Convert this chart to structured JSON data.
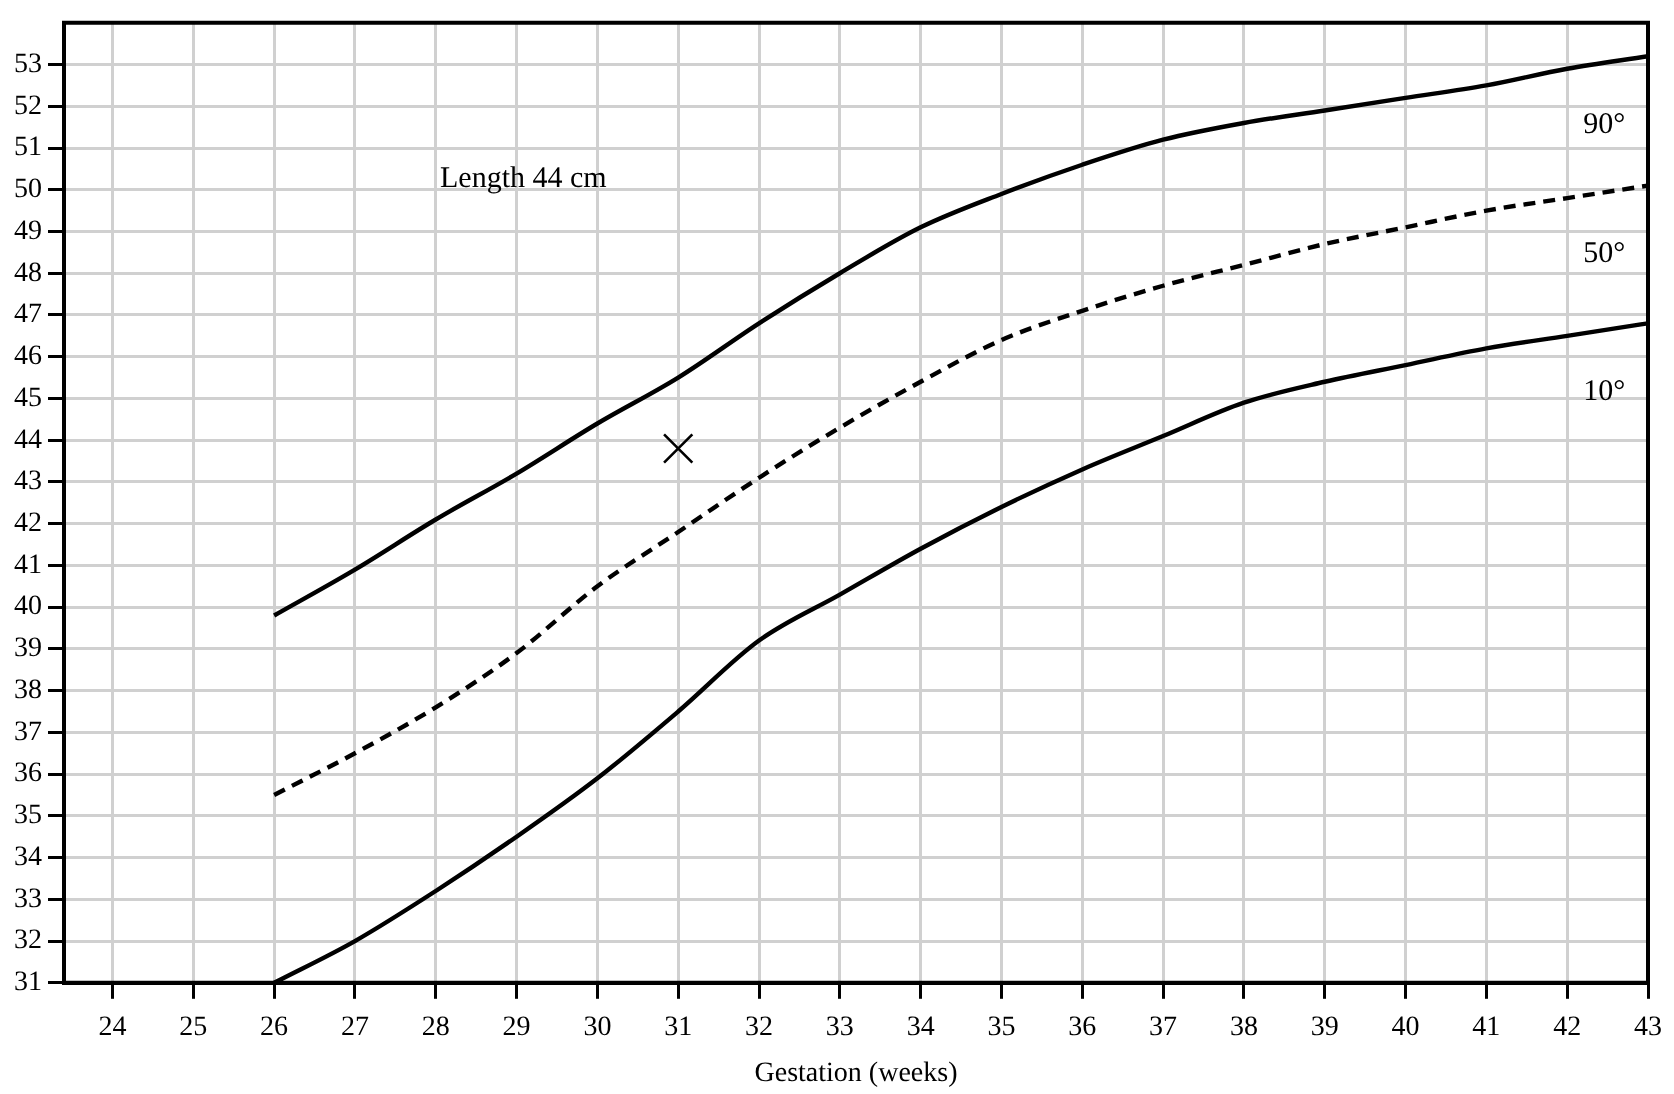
{
  "chart_data": {
    "type": "line",
    "xlabel": "Gestation (weeks)",
    "annotations": [
      "Length 44 cm"
    ],
    "x": [
      26,
      27,
      28,
      29,
      30,
      31,
      32,
      33,
      34,
      35,
      36,
      37,
      38,
      39,
      40,
      41,
      42,
      43
    ],
    "series": [
      {
        "name": "90°",
        "color": "#000000",
        "line_style": "solid",
        "values": [
          39.8,
          40.9,
          42.1,
          43.2,
          44.4,
          45.5,
          46.8,
          48.0,
          49.1,
          49.9,
          50.6,
          51.2,
          51.6,
          51.9,
          52.2,
          52.5,
          52.9,
          53.2
        ]
      },
      {
        "name": "50°",
        "color": "#000000",
        "line_style": "dashed",
        "values": [
          35.5,
          36.5,
          37.6,
          38.9,
          40.5,
          41.8,
          43.1,
          44.3,
          45.4,
          46.4,
          47.1,
          47.7,
          48.2,
          48.7,
          49.1,
          49.5,
          49.8,
          50.1
        ]
      },
      {
        "name": "10°",
        "color": "#000000",
        "line_style": "solid",
        "values": [
          31.0,
          32.0,
          33.2,
          34.5,
          35.9,
          37.5,
          39.2,
          40.3,
          41.4,
          42.4,
          43.3,
          44.1,
          44.9,
          45.4,
          45.8,
          46.2,
          46.5,
          46.8
        ]
      },
      {
        "type": "scatter",
        "marker": "cross",
        "color": "#000000",
        "x": [
          31
        ],
        "values": [
          43.8
        ]
      }
    ],
    "xlim": [
      23.4,
      43
    ],
    "xticks": [
      24,
      25,
      26,
      27,
      28,
      29,
      30,
      31,
      32,
      33,
      34,
      35,
      36,
      37,
      38,
      39,
      40,
      41,
      42,
      43
    ],
    "ylim": [
      31,
      54
    ],
    "yticks": [
      31,
      32,
      33,
      34,
      35,
      36,
      37,
      38,
      39,
      40,
      41,
      42,
      43,
      44,
      45,
      46,
      47,
      48,
      49,
      50,
      51,
      52,
      53
    ],
    "grid": true,
    "marker": "none",
    "legend": false
  }
}
